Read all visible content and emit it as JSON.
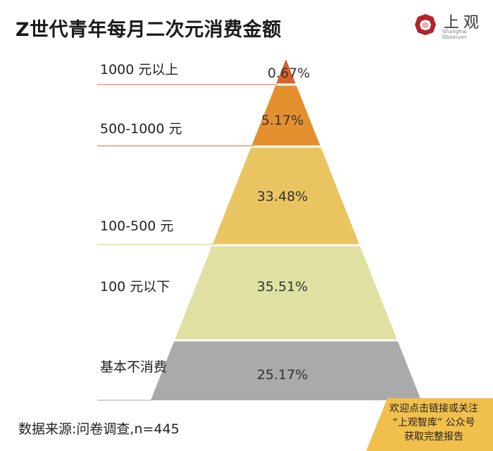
{
  "header": {
    "title": "Z世代青年每月二次元消费金额",
    "logo_text": "上观",
    "logo_sub": "Shanghai Observer"
  },
  "chart_data": {
    "type": "pyramid",
    "title": "Z世代青年每月二次元消费金额",
    "categories": [
      "1000 元以上",
      "500-1000 元",
      "100-500 元",
      "100 元以下",
      "基本不消费"
    ],
    "values": [
      0.67,
      5.17,
      33.48,
      35.51,
      25.17
    ],
    "value_labels": [
      "0.67%",
      "5.17%",
      "33.48%",
      "35.51%",
      "25.17%"
    ],
    "unit": "%",
    "colors": [
      "#d9622b",
      "#e5902f",
      "#ebc462",
      "#dfe0a2",
      "#aaaaaa"
    ],
    "legend": "left"
  },
  "footer": {
    "source": "数据来源:问卷调查,n=445",
    "cta_lines": [
      "欢迎点击链接或关注",
      "“上观智库” 公众号",
      "获取完整报告"
    ],
    "cta_color": "#f1c04c"
  }
}
